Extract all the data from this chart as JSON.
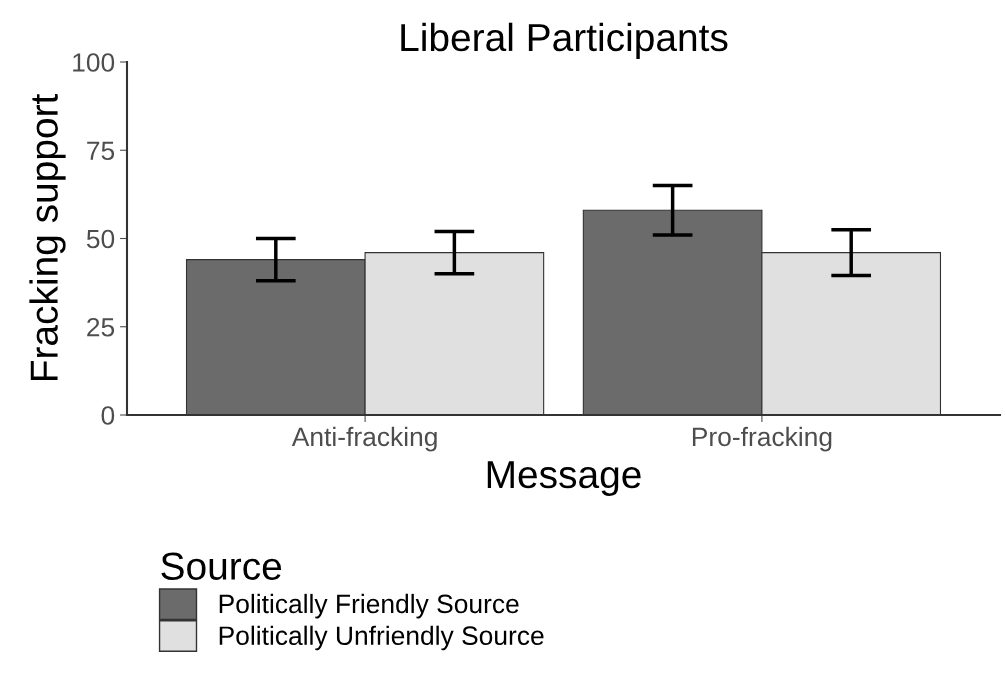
{
  "chart_data": {
    "type": "bar",
    "title": "Liberal Participants",
    "xlabel": "Message",
    "ylabel": "Fracking support",
    "legend_title": "Source",
    "categories": [
      "Anti-fracking",
      "Pro-fracking"
    ],
    "series": [
      {
        "name": "Politically Friendly Source",
        "color": "#6b6b6b",
        "values": [
          44,
          58
        ],
        "errors": [
          [
            38,
            50
          ],
          [
            51,
            65
          ]
        ]
      },
      {
        "name": "Politically Unfriendly Source",
        "color": "#e0e0e0",
        "values": [
          46,
          46
        ],
        "errors": [
          [
            40,
            52
          ],
          [
            39.5,
            52.5
          ]
        ]
      }
    ],
    "ylim": [
      0,
      100
    ],
    "yticks": [
      0,
      25,
      50,
      75,
      100
    ],
    "grid": false,
    "legend": "bottom"
  }
}
